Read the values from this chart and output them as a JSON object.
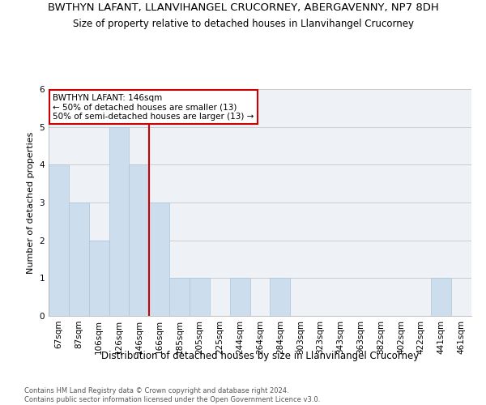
{
  "title": "BWTHYN LAFANT, LLANVIHANGEL CRUCORNEY, ABERGAVENNY, NP7 8DH",
  "subtitle": "Size of property relative to detached houses in Llanvihangel Crucorney",
  "xlabel": "Distribution of detached houses by size in Llanvihangel Crucorney",
  "ylabel": "Number of detached properties",
  "footnote": "Contains HM Land Registry data © Crown copyright and database right 2024.\nContains public sector information licensed under the Open Government Licence v3.0.",
  "categories": [
    "67sqm",
    "87sqm",
    "106sqm",
    "126sqm",
    "146sqm",
    "166sqm",
    "185sqm",
    "205sqm",
    "225sqm",
    "244sqm",
    "264sqm",
    "284sqm",
    "303sqm",
    "323sqm",
    "343sqm",
    "363sqm",
    "382sqm",
    "402sqm",
    "422sqm",
    "441sqm",
    "461sqm"
  ],
  "values": [
    4,
    3,
    2,
    5,
    4,
    3,
    1,
    1,
    0,
    1,
    0,
    1,
    0,
    0,
    0,
    0,
    0,
    0,
    0,
    1,
    0
  ],
  "bar_color": "#ccdded",
  "bar_edge_color": "#aac4d8",
  "vline_x_index": 4,
  "vline_color": "#cc0000",
  "annotation_text": "BWTHYN LAFANT: 146sqm\n← 50% of detached houses are smaller (13)\n50% of semi-detached houses are larger (13) →",
  "annotation_box_color": "#ffffff",
  "annotation_box_edge_color": "#cc0000",
  "ylim": [
    0,
    6
  ],
  "yticks": [
    0,
    1,
    2,
    3,
    4,
    5,
    6
  ],
  "grid_color": "#cccccc",
  "background_color": "#eef2f7",
  "title_fontsize": 9.5,
  "subtitle_fontsize": 8.5,
  "footnote_fontsize": 6.0
}
